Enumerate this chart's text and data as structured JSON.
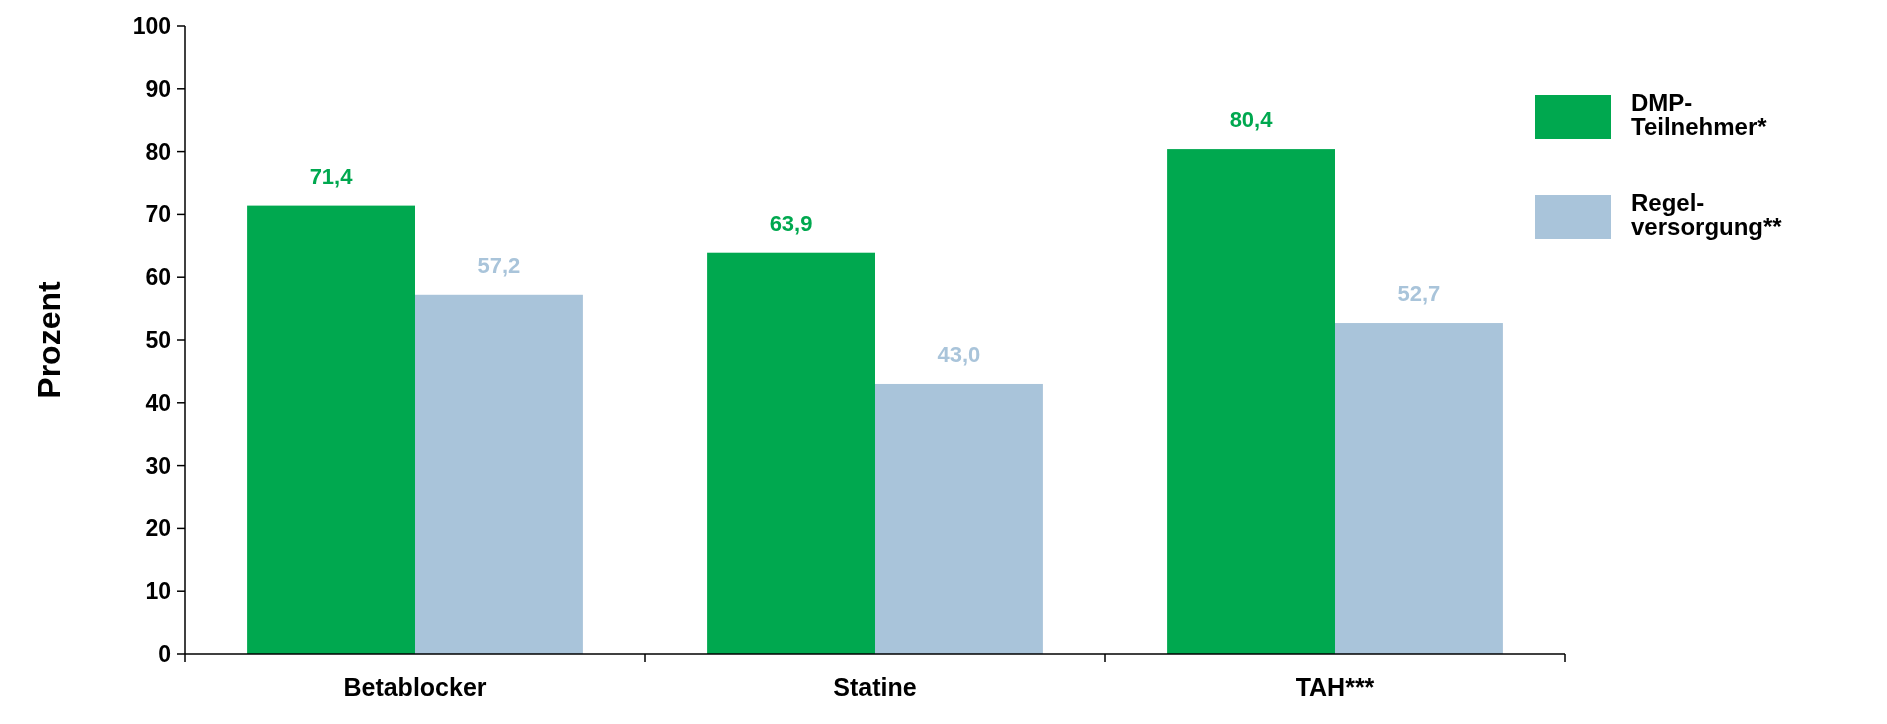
{
  "chart_data": {
    "type": "bar",
    "ylabel": "Prozent",
    "categories": [
      "Betablocker",
      "Statine",
      "TAH***"
    ],
    "series": [
      {
        "name": "DMP-\nTeilnehmer*",
        "color": "#00a84f",
        "values": [
          71.4,
          63.9,
          80.4
        ],
        "value_labels": [
          "71,4",
          "63,9",
          "80,4"
        ]
      },
      {
        "name": "Regel-\nversorgung**",
        "color": "#a9c4da",
        "values": [
          57.2,
          43.0,
          52.7
        ],
        "value_labels": [
          "57,2",
          "43,0",
          "52,7"
        ]
      }
    ],
    "ylim": [
      0,
      100
    ],
    "yticks": [
      0,
      10,
      20,
      30,
      40,
      50,
      60,
      70,
      80,
      90,
      100
    ],
    "legend": "top right"
  }
}
